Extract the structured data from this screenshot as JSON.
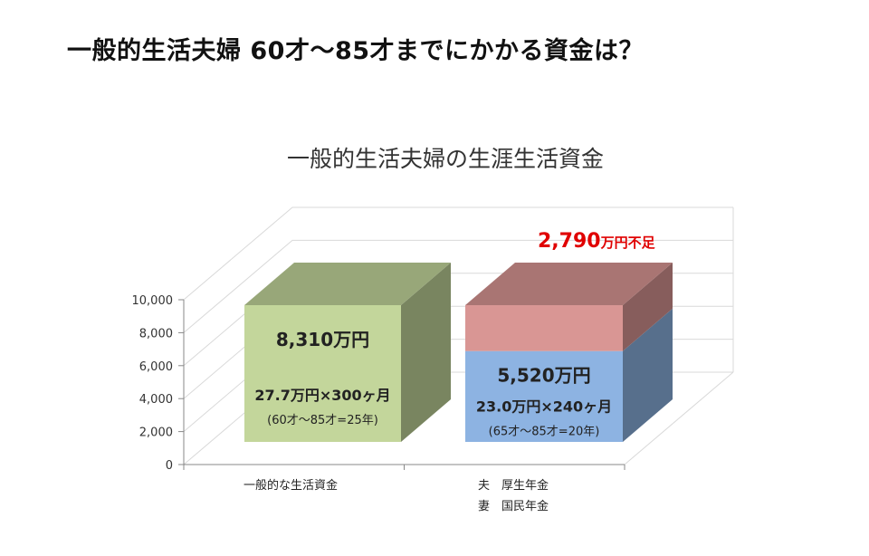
{
  "heading": "一般的生活夫婦 60才～85才までにかかる資金は？",
  "chart_data": {
    "type": "bar",
    "title": "一般的生活夫婦の生涯生活資金",
    "xlabel": "",
    "ylabel": "",
    "ylim": [
      0,
      10000
    ],
    "yticks": [
      "0",
      "2,000",
      "4,000",
      "6,000",
      "8,000",
      "10,000"
    ],
    "grid": true,
    "categories": [
      {
        "line1": "一般的な生活資金",
        "line2": ""
      },
      {
        "line1": "夫　厚生年金",
        "line2": "妻　国民年金"
      }
    ],
    "bars": [
      {
        "segments": [
          {
            "value": 8310,
            "color": "#c3d69b"
          }
        ],
        "labels": [
          "8,310万円",
          "27.7万円×300ヶ月",
          "(60才～85才=25年)"
        ]
      },
      {
        "segments": [
          {
            "value": 5520,
            "color": "#8db3e2"
          },
          {
            "value": 2790,
            "color": "#d99694"
          }
        ],
        "labels": [
          "5,520万円",
          "23.0万円×240ヶ月",
          "(65才～85才=20年)"
        ]
      }
    ],
    "annotation": {
      "amount": "2,790",
      "unit": "万円不足",
      "color": "#e00000"
    }
  }
}
